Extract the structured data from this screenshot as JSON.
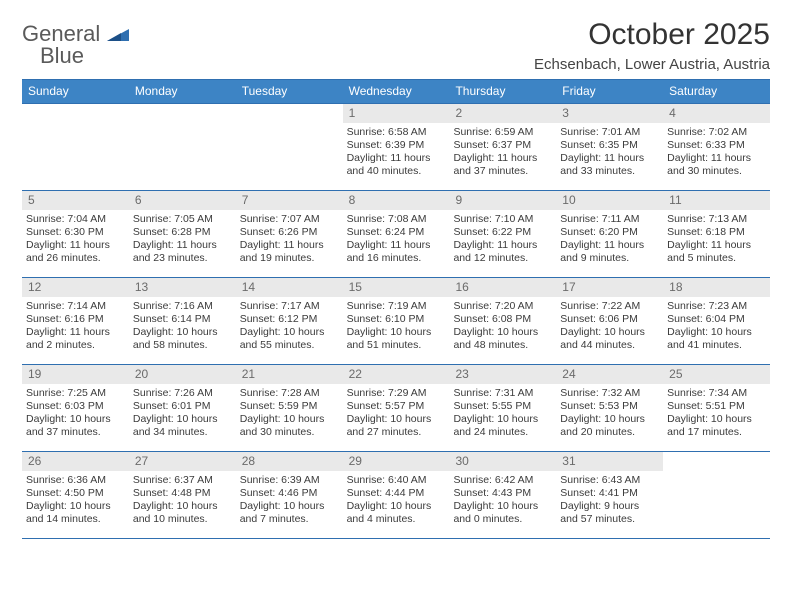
{
  "logo": {
    "general": "General",
    "blue": "Blue"
  },
  "title": "October 2025",
  "location": "Echsenbach, Lower Austria, Austria",
  "colors": {
    "header_bg": "#3d84c5",
    "border": "#2f6fb0",
    "band_bg": "#e9e9e9",
    "text": "#3b3b3b",
    "muted": "#6b6b6b"
  },
  "typography": {
    "title_fontsize": 30,
    "location_fontsize": 15,
    "dow_fontsize": 12,
    "cell_fontsize": 10.5
  },
  "dow": [
    "Sunday",
    "Monday",
    "Tuesday",
    "Wednesday",
    "Thursday",
    "Friday",
    "Saturday"
  ],
  "weeks": [
    [
      null,
      null,
      null,
      {
        "n": "1",
        "sr": "Sunrise: 6:58 AM",
        "ss": "Sunset: 6:39 PM",
        "d1": "Daylight: 11 hours",
        "d2": "and 40 minutes."
      },
      {
        "n": "2",
        "sr": "Sunrise: 6:59 AM",
        "ss": "Sunset: 6:37 PM",
        "d1": "Daylight: 11 hours",
        "d2": "and 37 minutes."
      },
      {
        "n": "3",
        "sr": "Sunrise: 7:01 AM",
        "ss": "Sunset: 6:35 PM",
        "d1": "Daylight: 11 hours",
        "d2": "and 33 minutes."
      },
      {
        "n": "4",
        "sr": "Sunrise: 7:02 AM",
        "ss": "Sunset: 6:33 PM",
        "d1": "Daylight: 11 hours",
        "d2": "and 30 minutes."
      }
    ],
    [
      {
        "n": "5",
        "sr": "Sunrise: 7:04 AM",
        "ss": "Sunset: 6:30 PM",
        "d1": "Daylight: 11 hours",
        "d2": "and 26 minutes."
      },
      {
        "n": "6",
        "sr": "Sunrise: 7:05 AM",
        "ss": "Sunset: 6:28 PM",
        "d1": "Daylight: 11 hours",
        "d2": "and 23 minutes."
      },
      {
        "n": "7",
        "sr": "Sunrise: 7:07 AM",
        "ss": "Sunset: 6:26 PM",
        "d1": "Daylight: 11 hours",
        "d2": "and 19 minutes."
      },
      {
        "n": "8",
        "sr": "Sunrise: 7:08 AM",
        "ss": "Sunset: 6:24 PM",
        "d1": "Daylight: 11 hours",
        "d2": "and 16 minutes."
      },
      {
        "n": "9",
        "sr": "Sunrise: 7:10 AM",
        "ss": "Sunset: 6:22 PM",
        "d1": "Daylight: 11 hours",
        "d2": "and 12 minutes."
      },
      {
        "n": "10",
        "sr": "Sunrise: 7:11 AM",
        "ss": "Sunset: 6:20 PM",
        "d1": "Daylight: 11 hours",
        "d2": "and 9 minutes."
      },
      {
        "n": "11",
        "sr": "Sunrise: 7:13 AM",
        "ss": "Sunset: 6:18 PM",
        "d1": "Daylight: 11 hours",
        "d2": "and 5 minutes."
      }
    ],
    [
      {
        "n": "12",
        "sr": "Sunrise: 7:14 AM",
        "ss": "Sunset: 6:16 PM",
        "d1": "Daylight: 11 hours",
        "d2": "and 2 minutes."
      },
      {
        "n": "13",
        "sr": "Sunrise: 7:16 AM",
        "ss": "Sunset: 6:14 PM",
        "d1": "Daylight: 10 hours",
        "d2": "and 58 minutes."
      },
      {
        "n": "14",
        "sr": "Sunrise: 7:17 AM",
        "ss": "Sunset: 6:12 PM",
        "d1": "Daylight: 10 hours",
        "d2": "and 55 minutes."
      },
      {
        "n": "15",
        "sr": "Sunrise: 7:19 AM",
        "ss": "Sunset: 6:10 PM",
        "d1": "Daylight: 10 hours",
        "d2": "and 51 minutes."
      },
      {
        "n": "16",
        "sr": "Sunrise: 7:20 AM",
        "ss": "Sunset: 6:08 PM",
        "d1": "Daylight: 10 hours",
        "d2": "and 48 minutes."
      },
      {
        "n": "17",
        "sr": "Sunrise: 7:22 AM",
        "ss": "Sunset: 6:06 PM",
        "d1": "Daylight: 10 hours",
        "d2": "and 44 minutes."
      },
      {
        "n": "18",
        "sr": "Sunrise: 7:23 AM",
        "ss": "Sunset: 6:04 PM",
        "d1": "Daylight: 10 hours",
        "d2": "and 41 minutes."
      }
    ],
    [
      {
        "n": "19",
        "sr": "Sunrise: 7:25 AM",
        "ss": "Sunset: 6:03 PM",
        "d1": "Daylight: 10 hours",
        "d2": "and 37 minutes."
      },
      {
        "n": "20",
        "sr": "Sunrise: 7:26 AM",
        "ss": "Sunset: 6:01 PM",
        "d1": "Daylight: 10 hours",
        "d2": "and 34 minutes."
      },
      {
        "n": "21",
        "sr": "Sunrise: 7:28 AM",
        "ss": "Sunset: 5:59 PM",
        "d1": "Daylight: 10 hours",
        "d2": "and 30 minutes."
      },
      {
        "n": "22",
        "sr": "Sunrise: 7:29 AM",
        "ss": "Sunset: 5:57 PM",
        "d1": "Daylight: 10 hours",
        "d2": "and 27 minutes."
      },
      {
        "n": "23",
        "sr": "Sunrise: 7:31 AM",
        "ss": "Sunset: 5:55 PM",
        "d1": "Daylight: 10 hours",
        "d2": "and 24 minutes."
      },
      {
        "n": "24",
        "sr": "Sunrise: 7:32 AM",
        "ss": "Sunset: 5:53 PM",
        "d1": "Daylight: 10 hours",
        "d2": "and 20 minutes."
      },
      {
        "n": "25",
        "sr": "Sunrise: 7:34 AM",
        "ss": "Sunset: 5:51 PM",
        "d1": "Daylight: 10 hours",
        "d2": "and 17 minutes."
      }
    ],
    [
      {
        "n": "26",
        "sr": "Sunrise: 6:36 AM",
        "ss": "Sunset: 4:50 PM",
        "d1": "Daylight: 10 hours",
        "d2": "and 14 minutes."
      },
      {
        "n": "27",
        "sr": "Sunrise: 6:37 AM",
        "ss": "Sunset: 4:48 PM",
        "d1": "Daylight: 10 hours",
        "d2": "and 10 minutes."
      },
      {
        "n": "28",
        "sr": "Sunrise: 6:39 AM",
        "ss": "Sunset: 4:46 PM",
        "d1": "Daylight: 10 hours",
        "d2": "and 7 minutes."
      },
      {
        "n": "29",
        "sr": "Sunrise: 6:40 AM",
        "ss": "Sunset: 4:44 PM",
        "d1": "Daylight: 10 hours",
        "d2": "and 4 minutes."
      },
      {
        "n": "30",
        "sr": "Sunrise: 6:42 AM",
        "ss": "Sunset: 4:43 PM",
        "d1": "Daylight: 10 hours",
        "d2": "and 0 minutes."
      },
      {
        "n": "31",
        "sr": "Sunrise: 6:43 AM",
        "ss": "Sunset: 4:41 PM",
        "d1": "Daylight: 9 hours",
        "d2": "and 57 minutes."
      },
      null
    ]
  ]
}
